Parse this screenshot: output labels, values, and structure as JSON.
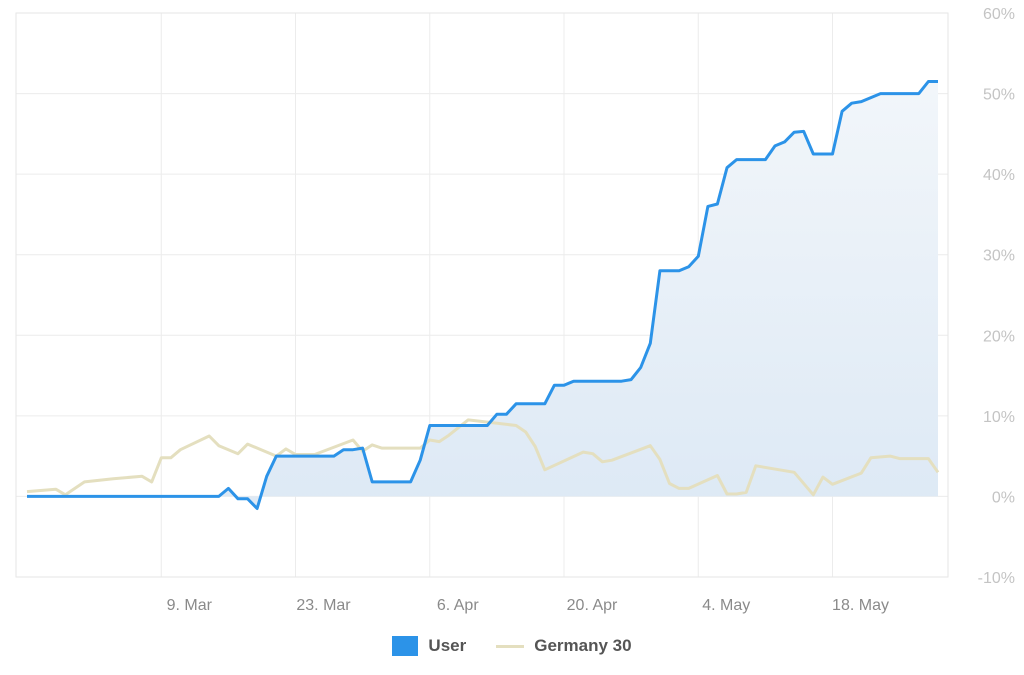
{
  "chart_data": {
    "type": "line",
    "x_ticks": [
      "9. Mar",
      "23. Mar",
      "6. Apr",
      "20. Apr",
      "4. May",
      "18. May"
    ],
    "x_range": [
      "2020-02-24",
      "2020-05-25"
    ],
    "y_ticks": [
      "60%",
      "50%",
      "40%",
      "30%",
      "20%",
      "10%",
      "0%",
      "-10%"
    ],
    "ylim": [
      -10,
      60
    ],
    "grid": true,
    "legend_position": "bottom",
    "series": [
      {
        "name": "User",
        "color": "#2c93e8",
        "area": true,
        "points": [
          [
            "2020-02-24",
            0
          ],
          [
            "2020-03-15",
            0
          ],
          [
            "2020-03-16",
            1
          ],
          [
            "2020-03-17",
            -0.3
          ],
          [
            "2020-03-18",
            -0.3
          ],
          [
            "2020-03-19",
            -1.5
          ],
          [
            "2020-03-20",
            2.5
          ],
          [
            "2020-03-21",
            5
          ],
          [
            "2020-03-22",
            5
          ],
          [
            "2020-03-27",
            5
          ],
          [
            "2020-03-28",
            5.8
          ],
          [
            "2020-03-29",
            5.8
          ],
          [
            "2020-03-30",
            6
          ],
          [
            "2020-03-31",
            1.8
          ],
          [
            "2020-04-04",
            1.8
          ],
          [
            "2020-04-05",
            4.5
          ],
          [
            "2020-04-06",
            8.8
          ],
          [
            "2020-04-12",
            8.8
          ],
          [
            "2020-04-13",
            10.2
          ],
          [
            "2020-04-14",
            10.2
          ],
          [
            "2020-04-15",
            11.5
          ],
          [
            "2020-04-18",
            11.5
          ],
          [
            "2020-04-19",
            13.8
          ],
          [
            "2020-04-20",
            13.8
          ],
          [
            "2020-04-21",
            14.3
          ],
          [
            "2020-04-26",
            14.3
          ],
          [
            "2020-04-27",
            14.5
          ],
          [
            "2020-04-28",
            16
          ],
          [
            "2020-04-29",
            19
          ],
          [
            "2020-04-30",
            28
          ],
          [
            "2020-05-02",
            28
          ],
          [
            "2020-05-03",
            28.5
          ],
          [
            "2020-05-04",
            29.8
          ],
          [
            "2020-05-05",
            36
          ],
          [
            "2020-05-06",
            36.3
          ],
          [
            "2020-05-07",
            40.8
          ],
          [
            "2020-05-08",
            41.8
          ],
          [
            "2020-05-11",
            41.8
          ],
          [
            "2020-05-12",
            43.5
          ],
          [
            "2020-05-13",
            44
          ],
          [
            "2020-05-14",
            45.2
          ],
          [
            "2020-05-15",
            45.3
          ],
          [
            "2020-05-16",
            42.5
          ],
          [
            "2020-05-17",
            42.5
          ],
          [
            "2020-05-18",
            42.5
          ],
          [
            "2020-05-19",
            47.8
          ],
          [
            "2020-05-20",
            48.8
          ],
          [
            "2020-05-21",
            49
          ],
          [
            "2020-05-22",
            49.5
          ],
          [
            "2020-05-23",
            50
          ],
          [
            "2020-05-27",
            50
          ],
          [
            "2020-05-28",
            51.5
          ],
          [
            "2020-05-29",
            51.5
          ]
        ]
      },
      {
        "name": "Germany 30",
        "color": "#e4dfbf",
        "area": false,
        "points": [
          [
            "2020-02-24",
            0.6
          ],
          [
            "2020-02-27",
            0.9
          ],
          [
            "2020-02-28",
            0.2
          ],
          [
            "2020-03-01",
            1.8
          ],
          [
            "2020-03-04",
            2.2
          ],
          [
            "2020-03-07",
            2.5
          ],
          [
            "2020-03-08",
            1.8
          ],
          [
            "2020-03-09",
            4.8
          ],
          [
            "2020-03-10",
            4.8
          ],
          [
            "2020-03-11",
            5.8
          ],
          [
            "2020-03-14",
            7.5
          ],
          [
            "2020-03-15",
            6.3
          ],
          [
            "2020-03-17",
            5.3
          ],
          [
            "2020-03-18",
            6.5
          ],
          [
            "2020-03-21",
            5
          ],
          [
            "2020-03-22",
            5.9
          ],
          [
            "2020-03-23",
            5.2
          ],
          [
            "2020-03-25",
            5.2
          ],
          [
            "2020-03-29",
            7
          ],
          [
            "2020-03-30",
            5.6
          ],
          [
            "2020-03-31",
            6.4
          ],
          [
            "2020-04-01",
            6
          ],
          [
            "2020-04-05",
            6
          ],
          [
            "2020-04-06",
            7
          ],
          [
            "2020-04-07",
            6.8
          ],
          [
            "2020-04-08",
            7.6
          ],
          [
            "2020-04-10",
            9.5
          ],
          [
            "2020-04-15",
            8.8
          ],
          [
            "2020-04-16",
            8
          ],
          [
            "2020-04-17",
            6.2
          ],
          [
            "2020-04-18",
            3.3
          ],
          [
            "2020-04-22",
            5.5
          ],
          [
            "2020-04-23",
            5.3
          ],
          [
            "2020-04-24",
            4.3
          ],
          [
            "2020-04-25",
            4.5
          ],
          [
            "2020-04-29",
            6.3
          ],
          [
            "2020-04-30",
            4.6
          ],
          [
            "2020-05-01",
            1.6
          ],
          [
            "2020-05-02",
            1
          ],
          [
            "2020-05-03",
            1
          ],
          [
            "2020-05-06",
            2.6
          ],
          [
            "2020-05-07",
            0.3
          ],
          [
            "2020-05-08",
            0.3
          ],
          [
            "2020-05-09",
            0.5
          ],
          [
            "2020-05-10",
            3.8
          ],
          [
            "2020-05-14",
            3
          ],
          [
            "2020-05-16",
            0.2
          ],
          [
            "2020-05-17",
            2.4
          ],
          [
            "2020-05-18",
            1.5
          ],
          [
            "2020-05-21",
            2.9
          ],
          [
            "2020-05-22",
            4.8
          ],
          [
            "2020-05-24",
            5
          ],
          [
            "2020-05-25",
            4.7
          ],
          [
            "2020-05-28",
            4.7
          ],
          [
            "2020-05-29",
            3
          ]
        ]
      }
    ]
  },
  "legend": {
    "items": [
      {
        "label": "User",
        "color": "#2c93e8",
        "shape": "box"
      },
      {
        "label": "Germany 30",
        "color": "#e4dfbf",
        "shape": "line"
      }
    ]
  }
}
